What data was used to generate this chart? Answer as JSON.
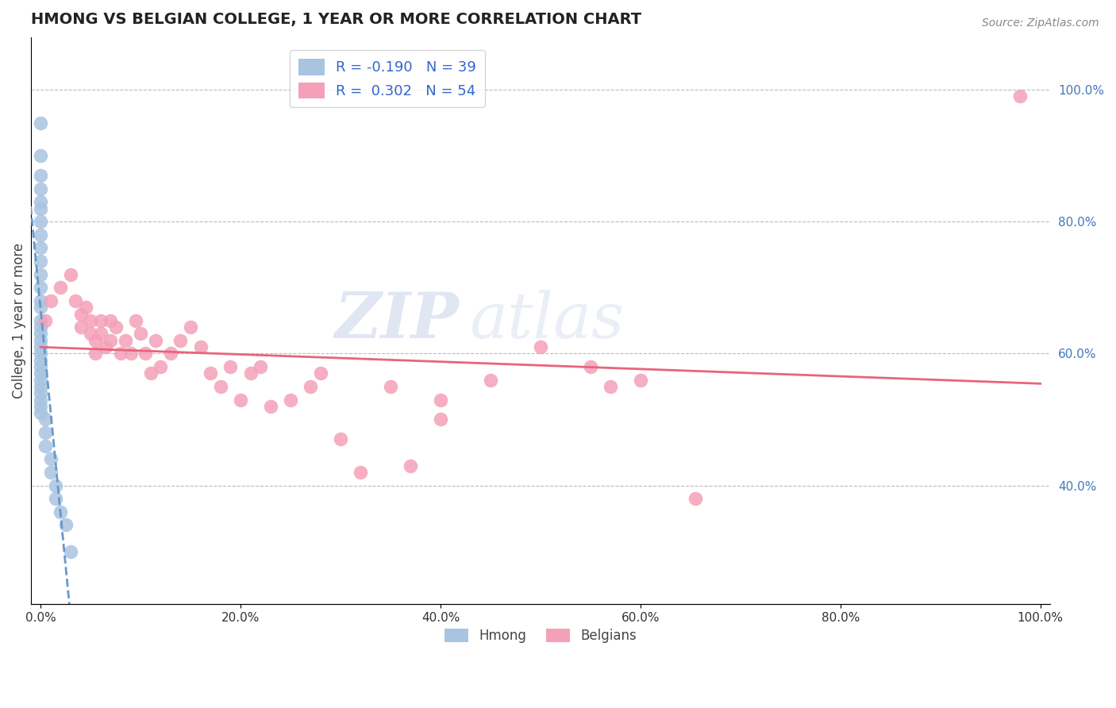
{
  "title": "HMONG VS BELGIAN COLLEGE, 1 YEAR OR MORE CORRELATION CHART",
  "ylabel": "College, 1 year or more",
  "source": "Source: ZipAtlas.com",
  "r_hmong": -0.19,
  "n_hmong": 39,
  "r_belgian": 0.302,
  "n_belgian": 54,
  "hmong_color": "#a8c4e0",
  "belgian_color": "#f4a0b8",
  "hmong_line_color": "#6699cc",
  "belgian_line_color": "#e8647d",
  "watermark_zip": "ZIP",
  "watermark_atlas": "atlas",
  "grid_color": "#bbbbbb",
  "title_color": "#222222",
  "axis_label_color": "#444444",
  "right_axis_color": "#4477bb",
  "hmong_x": [
    0.0,
    0.0,
    0.0,
    0.0,
    0.0,
    0.0,
    0.0,
    0.0,
    0.0,
    0.0,
    0.0,
    0.0,
    0.0,
    0.0,
    0.0,
    0.0,
    0.0,
    0.0,
    0.0,
    0.0,
    0.0,
    0.0,
    0.0,
    0.0,
    0.0,
    0.0,
    0.0,
    0.0,
    0.0,
    0.5,
    0.5,
    0.5,
    1.0,
    1.0,
    1.5,
    1.5,
    2.0,
    2.5,
    3.0
  ],
  "hmong_y": [
    95.0,
    90.0,
    87.0,
    85.0,
    83.0,
    82.0,
    80.0,
    78.0,
    76.0,
    74.0,
    72.0,
    70.0,
    68.0,
    67.0,
    65.0,
    64.0,
    63.0,
    62.0,
    61.0,
    60.0,
    59.0,
    58.0,
    57.0,
    56.0,
    55.0,
    54.0,
    53.0,
    52.0,
    51.0,
    50.0,
    48.0,
    46.0,
    44.0,
    42.0,
    40.0,
    38.0,
    36.0,
    34.0,
    30.0
  ],
  "belgian_x": [
    0.5,
    1.0,
    2.0,
    3.0,
    3.5,
    4.0,
    4.0,
    4.5,
    5.0,
    5.0,
    5.5,
    5.5,
    6.0,
    6.0,
    6.5,
    7.0,
    7.0,
    7.5,
    8.0,
    8.5,
    9.0,
    9.5,
    10.0,
    10.5,
    11.0,
    11.5,
    12.0,
    13.0,
    14.0,
    15.0,
    16.0,
    17.0,
    18.0,
    19.0,
    20.0,
    21.0,
    22.0,
    23.0,
    25.0,
    27.0,
    28.0,
    30.0,
    32.0,
    35.0,
    37.0,
    40.0,
    45.0,
    50.0,
    55.0,
    57.0,
    60.0,
    65.5,
    40.0,
    98.0
  ],
  "belgian_y": [
    65.0,
    68.0,
    70.0,
    72.0,
    68.0,
    66.0,
    64.0,
    67.0,
    65.0,
    63.0,
    62.0,
    60.0,
    65.0,
    63.0,
    61.0,
    65.0,
    62.0,
    64.0,
    60.0,
    62.0,
    60.0,
    65.0,
    63.0,
    60.0,
    57.0,
    62.0,
    58.0,
    60.0,
    62.0,
    64.0,
    61.0,
    57.0,
    55.0,
    58.0,
    53.0,
    57.0,
    58.0,
    52.0,
    53.0,
    55.0,
    57.0,
    47.0,
    42.0,
    55.0,
    43.0,
    53.0,
    56.0,
    61.0,
    58.0,
    55.0,
    56.0,
    38.0,
    50.0,
    99.0
  ],
  "xlim": [
    -1.0,
    101.0
  ],
  "ylim": [
    22.0,
    108.0
  ],
  "right_yticks": [
    40.0,
    60.0,
    80.0,
    100.0
  ],
  "bottom_xticks": [
    0.0,
    20.0,
    40.0,
    60.0,
    80.0,
    100.0
  ]
}
